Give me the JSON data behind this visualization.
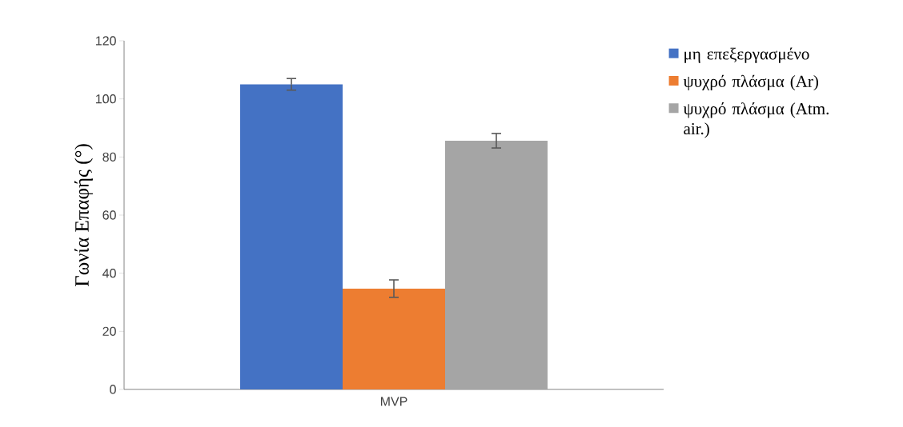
{
  "chart_data": {
    "type": "bar",
    "categories": [
      "MVP"
    ],
    "ylabel": "Γωνία Επαφής (°)",
    "ylim": [
      0,
      120
    ],
    "yticks": [
      0,
      20,
      40,
      60,
      80,
      100,
      120
    ],
    "legend": "right",
    "grid": false,
    "series": [
      {
        "name": "μη επεξεργασμένο",
        "color": "#4472c4",
        "values": [
          105
        ],
        "errors": [
          2
        ]
      },
      {
        "name": "ψυχρό πλάσμα (Ar)",
        "color": "#ed7d31",
        "values": [
          34.7
        ],
        "errors": [
          3
        ]
      },
      {
        "name": "ψυχρό πλάσμα (Atm. air.)",
        "color": "#a5a5a5",
        "values": [
          85.6
        ],
        "errors": [
          2.5
        ]
      }
    ]
  }
}
